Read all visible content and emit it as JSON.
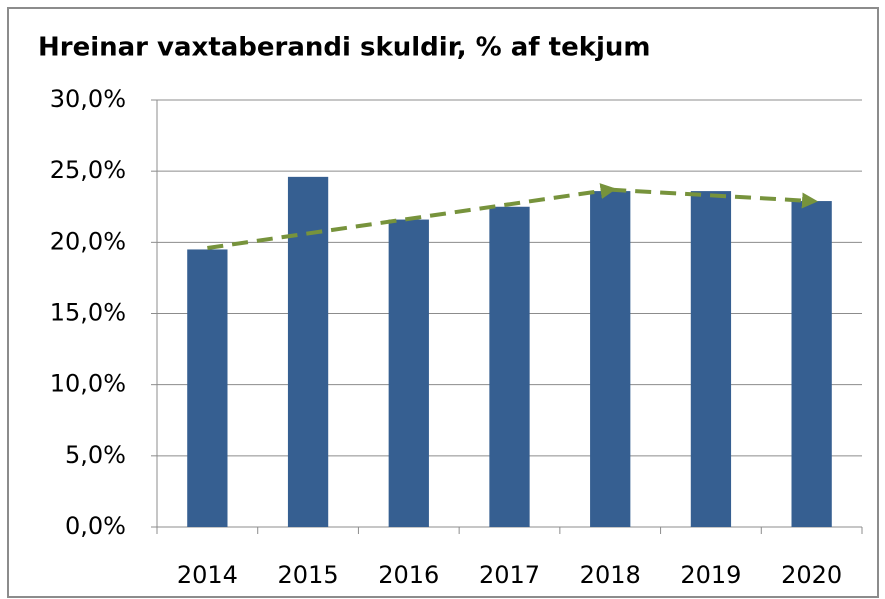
{
  "chart_data": {
    "type": "bar",
    "title": "Hreinar vaxtaberandi skuldir, % af tekjum",
    "categories": [
      "2014",
      "2015",
      "2016",
      "2017",
      "2018",
      "2019",
      "2020"
    ],
    "values": [
      19.5,
      24.6,
      21.6,
      22.5,
      23.6,
      23.6,
      22.9
    ],
    "color": "#365f91",
    "ylim": [
      0,
      30
    ],
    "yticks": [
      {
        "value": 0,
        "label": "0,0%"
      },
      {
        "value": 5,
        "label": "5,0%"
      },
      {
        "value": 10,
        "label": "10,0%"
      },
      {
        "value": 15,
        "label": "15,0%"
      },
      {
        "value": 20,
        "label": "20,0%"
      },
      {
        "value": 25,
        "label": "25,0%"
      },
      {
        "value": 30,
        "label": "30,0%"
      }
    ],
    "grid": true,
    "trend_categories": [
      "2014",
      "2018",
      "2020"
    ],
    "trend_values": [
      19.6,
      23.7,
      22.9
    ],
    "trend_color": "#77933c"
  }
}
